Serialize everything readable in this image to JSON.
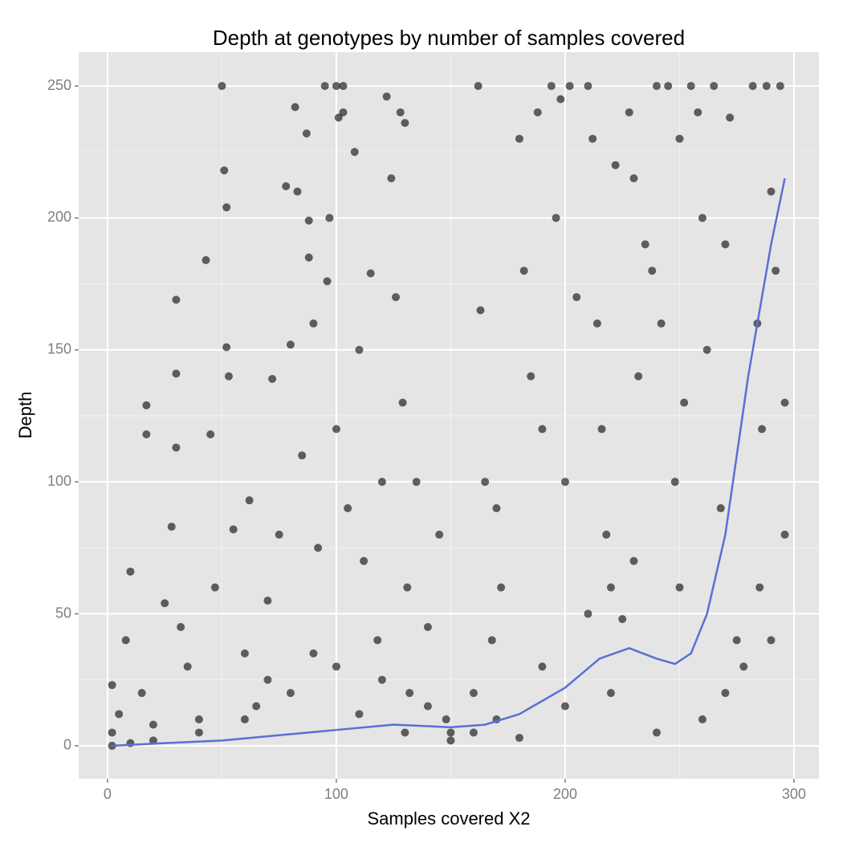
{
  "chart_data": {
    "type": "scatter",
    "title": "Depth at genotypes by number of samples covered",
    "x_label": "Samples covered X2",
    "y_label": "Depth",
    "xlim": [
      -12.6,
      310.9
    ],
    "ylim": [
      -12.5,
      262.8
    ],
    "xticks": [
      0,
      100,
      200,
      300
    ],
    "yticks": [
      0,
      50,
      100,
      150,
      200,
      250
    ],
    "xminor": [
      50,
      150,
      250
    ],
    "yminor": [
      25,
      75,
      125,
      175,
      225
    ],
    "grid": true,
    "color": "#000000",
    "x": [
      2,
      2,
      2,
      5,
      8,
      10,
      15,
      17,
      17,
      20,
      25,
      28,
      30,
      30,
      30,
      32,
      35,
      40,
      43,
      45,
      47,
      50,
      51,
      52,
      52,
      53,
      55,
      60,
      62,
      65,
      70,
      72,
      75,
      78,
      80,
      82,
      83,
      85,
      87,
      88,
      88,
      90,
      92,
      95,
      96,
      97,
      100,
      100,
      101,
      103,
      103,
      105,
      108,
      110,
      112,
      115,
      118,
      120,
      122,
      124,
      126,
      128,
      129,
      130,
      131,
      132,
      135,
      140,
      145,
      148,
      150,
      160,
      162,
      163,
      165,
      168,
      170,
      172,
      180,
      182,
      185,
      188,
      190,
      194,
      196,
      198,
      200,
      202,
      205,
      210,
      212,
      214,
      216,
      218,
      220,
      222,
      225,
      228,
      230,
      232,
      235,
      238,
      240,
      242,
      245,
      248,
      250,
      252,
      255,
      258,
      260,
      262,
      265,
      268,
      270,
      272,
      275,
      278,
      282,
      284,
      286,
      288,
      290,
      292,
      294,
      296,
      296,
      290,
      285,
      260,
      240,
      220,
      200,
      180,
      160,
      140,
      120,
      100,
      80,
      60,
      40,
      20,
      10,
      230,
      250,
      270,
      210,
      190,
      170,
      150,
      130,
      110,
      90,
      70
    ],
    "values": [
      23,
      5,
      0,
      12,
      40,
      66,
      20,
      129,
      118,
      8,
      54,
      83,
      169,
      141,
      113,
      45,
      30,
      10,
      184,
      118,
      60,
      250,
      218,
      204,
      151,
      140,
      82,
      35,
      93,
      15,
      55,
      139,
      80,
      212,
      152,
      242,
      210,
      110,
      232,
      199,
      185,
      160,
      75,
      250,
      176,
      200,
      250,
      120,
      238,
      240,
      250,
      90,
      225,
      150,
      70,
      179,
      40,
      100,
      246,
      215,
      170,
      240,
      130,
      236,
      60,
      20,
      100,
      45,
      80,
      10,
      5,
      20,
      250,
      165,
      100,
      40,
      90,
      60,
      230,
      180,
      140,
      240,
      120,
      250,
      200,
      245,
      100,
      250,
      170,
      250,
      230,
      160,
      120,
      80,
      60,
      220,
      48,
      240,
      215,
      140,
      190,
      180,
      250,
      160,
      250,
      100,
      230,
      130,
      250,
      240,
      200,
      150,
      250,
      90,
      190,
      238,
      40,
      30,
      250,
      160,
      120,
      250,
      210,
      180,
      250,
      130,
      80,
      40,
      60,
      10,
      5,
      20,
      15,
      3,
      5,
      15,
      25,
      30,
      20,
      10,
      5,
      2,
      1,
      70,
      60,
      20,
      50,
      30,
      10,
      2,
      5,
      12,
      35,
      25
    ],
    "smooth": {
      "color": "#5a6fd6",
      "x": [
        2,
        25,
        50,
        75,
        100,
        125,
        150,
        165,
        180,
        200,
        215,
        228,
        240,
        248,
        255,
        262,
        270,
        280,
        290,
        296
      ],
      "values": [
        0,
        1,
        2,
        4,
        6,
        8,
        7,
        8,
        12,
        22,
        33,
        37,
        33,
        31,
        35,
        50,
        80,
        140,
        190,
        215
      ]
    }
  }
}
